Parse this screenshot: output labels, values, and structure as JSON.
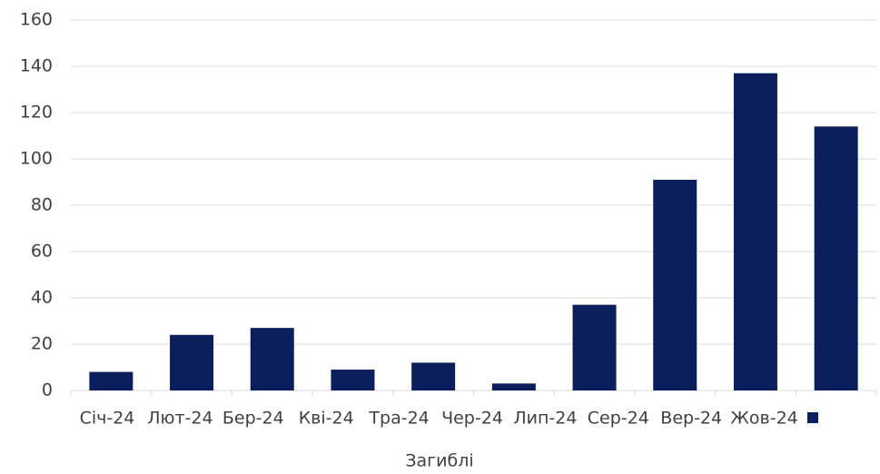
{
  "chart_data": {
    "type": "bar",
    "categories": [
      "Січ-24",
      "Лют-24",
      "Бер-24",
      "Кві-24",
      "Тра-24",
      "Чер-24",
      "Лип-24",
      "Сер-24",
      "Вер-24",
      "Жов-24"
    ],
    "series": [
      {
        "name": "Загиблі",
        "color": "#0b1f5c",
        "values": [
          8,
          24,
          27,
          9,
          12,
          3,
          37,
          91,
          137,
          114
        ]
      }
    ],
    "ylim": [
      0,
      160
    ],
    "yticks": [
      0,
      20,
      40,
      60,
      80,
      100,
      120,
      140,
      160
    ],
    "grid": true
  }
}
